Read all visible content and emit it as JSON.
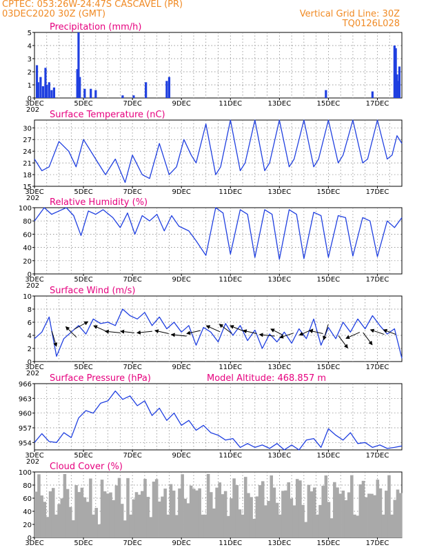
{
  "header": {
    "line1": "CPTEC:   053:26W-24:47S   CASCAVEL (PR)",
    "line2": "03DEC2020 30Z (GMT)",
    "grid_note": "Vertical Grid Line: 30Z",
    "code": "TQ0126L028"
  },
  "colors": {
    "header": "#f08a24",
    "title": "#e6007e",
    "line": "#1f3fe0",
    "bar": "#1f3fe0",
    "cloud": "#a9a9a9"
  },
  "x_ticks": [
    "3DEC",
    "5DEC",
    "7DEC",
    "9DEC",
    "11DEC",
    "13DEC",
    "15DEC",
    "17DEC"
  ],
  "x_sublabel": "202",
  "panels": {
    "precip": {
      "title": "Precipitation (mm/h)"
    },
    "temp": {
      "title": "Surface Temperature (nC)"
    },
    "rh": {
      "title": "Relative Humidity (%)"
    },
    "wind": {
      "title": "Surface Wind (m/s)"
    },
    "pres": {
      "title": "Surface Pressure (hPa)",
      "extra": "Model Altitude: 468.857  m"
    },
    "cloud": {
      "title": "Cloud Cover (%)"
    }
  },
  "chart_data": [
    {
      "type": "bar",
      "id": "precip",
      "title": "Precipitation (mm/h)",
      "ylim": [
        0,
        5
      ],
      "yticks": [
        0,
        1,
        2,
        3,
        4,
        5
      ],
      "x_range_days": [
        3.0,
        18.0
      ],
      "x": [
        3.1,
        3.15,
        3.25,
        3.35,
        3.45,
        3.5,
        3.6,
        3.7,
        3.8,
        4.75,
        4.8,
        4.85,
        5.05,
        5.3,
        5.5,
        6.6,
        7.05,
        7.55,
        8.4,
        8.5,
        14.9,
        16.8,
        17.7,
        17.75,
        17.8,
        17.85,
        17.9
      ],
      "values": [
        2.5,
        1.2,
        1.6,
        0.9,
        2.3,
        1.0,
        1.2,
        0.6,
        0.8,
        2.2,
        5.0,
        1.6,
        0.7,
        0.7,
        0.6,
        0.2,
        0.2,
        1.2,
        1.3,
        1.6,
        0.6,
        0.5,
        4.0,
        3.8,
        1.8,
        1.3,
        2.4
      ]
    },
    {
      "type": "line",
      "id": "temp",
      "title": "Surface Temperature (nC)",
      "ylim": [
        15,
        32
      ],
      "yticks": [
        15,
        18,
        21,
        24,
        27,
        30
      ],
      "x": [
        3.0,
        3.3,
        3.6,
        4.0,
        4.4,
        4.7,
        5.0,
        5.2,
        5.5,
        5.9,
        6.3,
        6.7,
        7.0,
        7.4,
        7.7,
        8.1,
        8.5,
        8.8,
        9.1,
        9.4,
        9.6,
        10.0,
        10.4,
        10.6,
        11.0,
        11.4,
        11.6,
        12.0,
        12.4,
        12.6,
        13.0,
        13.4,
        13.6,
        14.0,
        14.4,
        14.6,
        15.0,
        15.4,
        15.6,
        16.0,
        16.4,
        16.6,
        17.0,
        17.4,
        17.6,
        17.8,
        18.0
      ],
      "values": [
        22,
        19,
        20,
        26.5,
        24,
        20,
        27,
        25,
        22,
        18,
        22,
        16,
        23,
        18,
        17,
        26,
        18,
        20,
        27,
        23,
        21,
        31,
        18,
        20,
        32,
        19,
        21,
        32,
        19,
        21,
        32,
        20,
        22,
        32,
        20,
        22,
        32,
        21,
        23,
        32,
        21,
        22,
        32,
        22,
        23,
        28,
        26
      ]
    },
    {
      "type": "line",
      "id": "rh",
      "title": "Relative Humidity (%)",
      "ylim": [
        0,
        100
      ],
      "yticks": [
        0,
        20,
        40,
        60,
        80,
        100
      ],
      "x": [
        3.0,
        3.4,
        3.7,
        4.0,
        4.3,
        4.6,
        4.9,
        5.2,
        5.5,
        5.8,
        6.2,
        6.5,
        6.8,
        7.1,
        7.4,
        7.7,
        8.0,
        8.3,
        8.6,
        8.9,
        9.3,
        9.6,
        10.0,
        10.4,
        10.7,
        11.0,
        11.4,
        11.7,
        12.0,
        12.4,
        12.7,
        13.0,
        13.4,
        13.7,
        14.0,
        14.4,
        14.7,
        15.0,
        15.4,
        15.7,
        16.0,
        16.4,
        16.7,
        17.0,
        17.4,
        17.7,
        18.0
      ],
      "values": [
        80,
        100,
        90,
        95,
        100,
        88,
        58,
        95,
        90,
        97,
        85,
        70,
        92,
        60,
        88,
        80,
        90,
        65,
        88,
        72,
        65,
        50,
        28,
        100,
        92,
        30,
        97,
        90,
        25,
        97,
        90,
        22,
        97,
        90,
        23,
        93,
        88,
        25,
        88,
        85,
        27,
        85,
        80,
        26,
        80,
        70,
        85
      ]
    },
    {
      "type": "line",
      "id": "wind",
      "title": "Surface Wind (m/s)",
      "ylim": [
        0,
        10
      ],
      "yticks": [
        0,
        2,
        4,
        6,
        8,
        10
      ],
      "x": [
        3.0,
        3.3,
        3.6,
        3.9,
        4.2,
        4.5,
        4.8,
        5.1,
        5.4,
        5.7,
        6.0,
        6.3,
        6.6,
        6.9,
        7.2,
        7.5,
        7.8,
        8.1,
        8.4,
        8.7,
        9.0,
        9.3,
        9.6,
        9.9,
        10.2,
        10.5,
        10.8,
        11.1,
        11.4,
        11.7,
        12.0,
        12.3,
        12.6,
        12.9,
        13.2,
        13.5,
        13.8,
        14.1,
        14.4,
        14.7,
        15.0,
        15.3,
        15.6,
        15.9,
        16.2,
        16.5,
        16.8,
        17.1,
        17.4,
        17.7,
        18.0
      ],
      "values": [
        3.5,
        4.5,
        6.8,
        0.8,
        3.5,
        4.5,
        5.5,
        4.2,
        6.5,
        5.8,
        6.0,
        5.5,
        8.0,
        7.0,
        6.5,
        7.5,
        5.5,
        6.8,
        5.0,
        6.0,
        4.5,
        5.5,
        2.5,
        5.2,
        4.5,
        3.0,
        5.8,
        4.0,
        5.5,
        3.2,
        4.8,
        2.0,
        4.2,
        3.0,
        4.5,
        2.8,
        5.0,
        3.5,
        6.5,
        2.5,
        5.2,
        3.5,
        6.0,
        4.5,
        6.5,
        5.0,
        7.0,
        5.5,
        4.2,
        5.0,
        0.5
      ],
      "vectors_u": [
        0.3,
        -0.7,
        0.9,
        -0.9,
        -1,
        -0.9,
        -1,
        -0.9,
        -1,
        -0.9,
        -0.9,
        -0.8,
        -1,
        -0.9,
        -1,
        -0.8,
        -0.9,
        -0.9,
        -0.9,
        -0.3,
        0.6,
        -0.9,
        0.6,
        -0.9,
        -0.8
      ],
      "vectors_v": [
        -1,
        0.7,
        0.5,
        0.4,
        0.1,
        0.1,
        -0.1,
        0.2,
        0.1,
        -0.2,
        0.4,
        0.6,
        0.4,
        0.2,
        0.1,
        0.4,
        -0.3,
        -0.4,
        0.2,
        -1,
        -0.8,
        -0.4,
        -0.8,
        0.3,
        0.3
      ],
      "vectors_day": [
        3.8,
        4.5,
        4.9,
        5.7,
        6.2,
        6.8,
        7.5,
        8.2,
        8.9,
        9.5,
        10.3,
        10.8,
        11.3,
        11.8,
        12.5,
        12.9,
        13.3,
        14.1,
        14.5,
        14.9,
        15.6,
        16.0,
        16.6,
        17.0,
        17.5
      ],
      "vectors_mag": [
        3.5,
        4.5,
        5.5,
        5,
        4.5,
        4.5,
        4.5,
        4.5,
        4,
        4.5,
        5,
        5,
        5,
        4.5,
        4,
        4.5,
        4,
        4.5,
        4.5,
        4.5,
        3,
        4,
        3.5,
        4.5,
        4.5
      ]
    },
    {
      "type": "line",
      "id": "pres",
      "title": "Surface Pressure (hPa)",
      "ylim": [
        952.5,
        966
      ],
      "yticks": [
        954,
        957,
        960,
        963,
        966
      ],
      "x": [
        3.0,
        3.3,
        3.6,
        3.9,
        4.2,
        4.5,
        4.8,
        5.1,
        5.4,
        5.7,
        6.0,
        6.3,
        6.6,
        6.9,
        7.2,
        7.5,
        7.8,
        8.1,
        8.4,
        8.7,
        9.0,
        9.3,
        9.6,
        9.9,
        10.2,
        10.5,
        10.8,
        11.1,
        11.4,
        11.7,
        12.0,
        12.3,
        12.6,
        12.9,
        13.2,
        13.5,
        13.8,
        14.1,
        14.4,
        14.7,
        15.0,
        15.3,
        15.6,
        15.9,
        16.2,
        16.5,
        16.8,
        17.1,
        17.4,
        17.7,
        18.0
      ],
      "values": [
        954,
        955.8,
        954.2,
        954,
        956,
        955,
        959,
        960.5,
        960,
        962,
        962.5,
        964.5,
        962.8,
        963.5,
        961.5,
        962.5,
        959.5,
        961,
        958.5,
        960,
        957.5,
        958.5,
        956.5,
        957.5,
        956,
        955.5,
        954.5,
        954.8,
        953,
        953.8,
        953,
        953.5,
        952.8,
        953.8,
        952.5,
        953.5,
        952.5,
        954.5,
        954.8,
        953,
        956.8,
        955.5,
        954.5,
        956,
        953.8,
        954,
        953,
        953.5,
        952.8,
        953,
        953.3
      ]
    },
    {
      "type": "bar",
      "id": "cloud",
      "title": "Cloud Cover (%)",
      "ylim": [
        0,
        100
      ],
      "yticks": [
        0,
        20,
        40,
        60,
        80,
        100
      ],
      "x_range_days": [
        3.0,
        18.0
      ],
      "bins": 128,
      "values_summary": "mostly 60-100% with intermittent drops to 10-40%"
    }
  ]
}
